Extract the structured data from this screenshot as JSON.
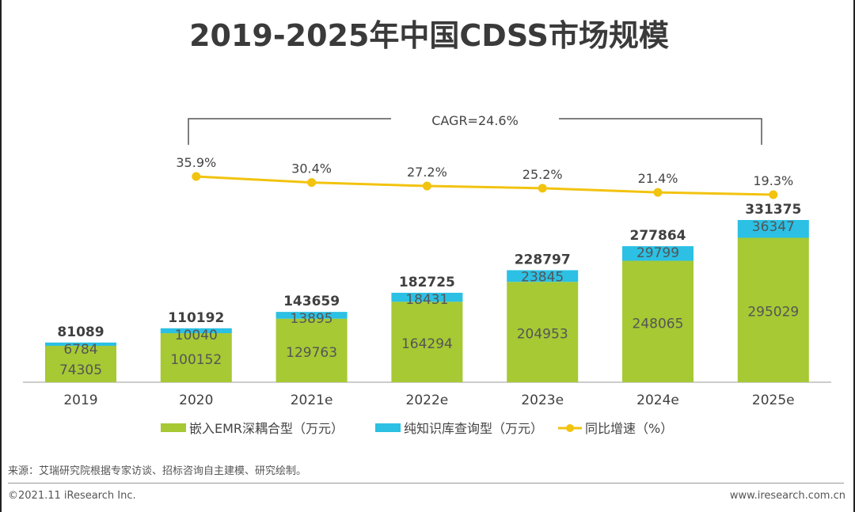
{
  "chart_data": {
    "type": "bar",
    "stacked": true,
    "title": "2019-2025年中国CDSS市场规模",
    "categories": [
      "2019",
      "2020",
      "2021e",
      "2022e",
      "2023e",
      "2024e",
      "2025e"
    ],
    "series": [
      {
        "name": "嵌入EMR深耦合型（万元）",
        "color": "#a6c934",
        "values": [
          74305,
          100152,
          129763,
          164294,
          204953,
          248065,
          295029
        ]
      },
      {
        "name": "纯知识库查询型（万元）",
        "color": "#2bc0e4",
        "values": [
          6784,
          10040,
          13895,
          18431,
          23845,
          29799,
          36347
        ]
      }
    ],
    "totals": [
      81089,
      110192,
      143659,
      182725,
      228797,
      277864,
      331375
    ],
    "line_series": {
      "name": "同比增速（%）",
      "color": "#f2c30f",
      "categories": [
        "2020",
        "2021e",
        "2022e",
        "2023e",
        "2024e",
        "2025e"
      ],
      "values": [
        35.9,
        30.4,
        27.2,
        25.2,
        21.4,
        19.3
      ],
      "labels": [
        "35.9%",
        "30.4%",
        "27.2%",
        "25.2%",
        "21.4%",
        "19.3%"
      ]
    },
    "annotation": "CAGR=24.6%",
    "legend_position": "bottom",
    "grid": false
  },
  "footer": {
    "source": "来源：艾瑞研究院根据专家访谈、招标咨询自主建模、研究绘制。",
    "copyright": "©2021.11 iResearch Inc.",
    "website": "www.iresearch.com.cn"
  }
}
